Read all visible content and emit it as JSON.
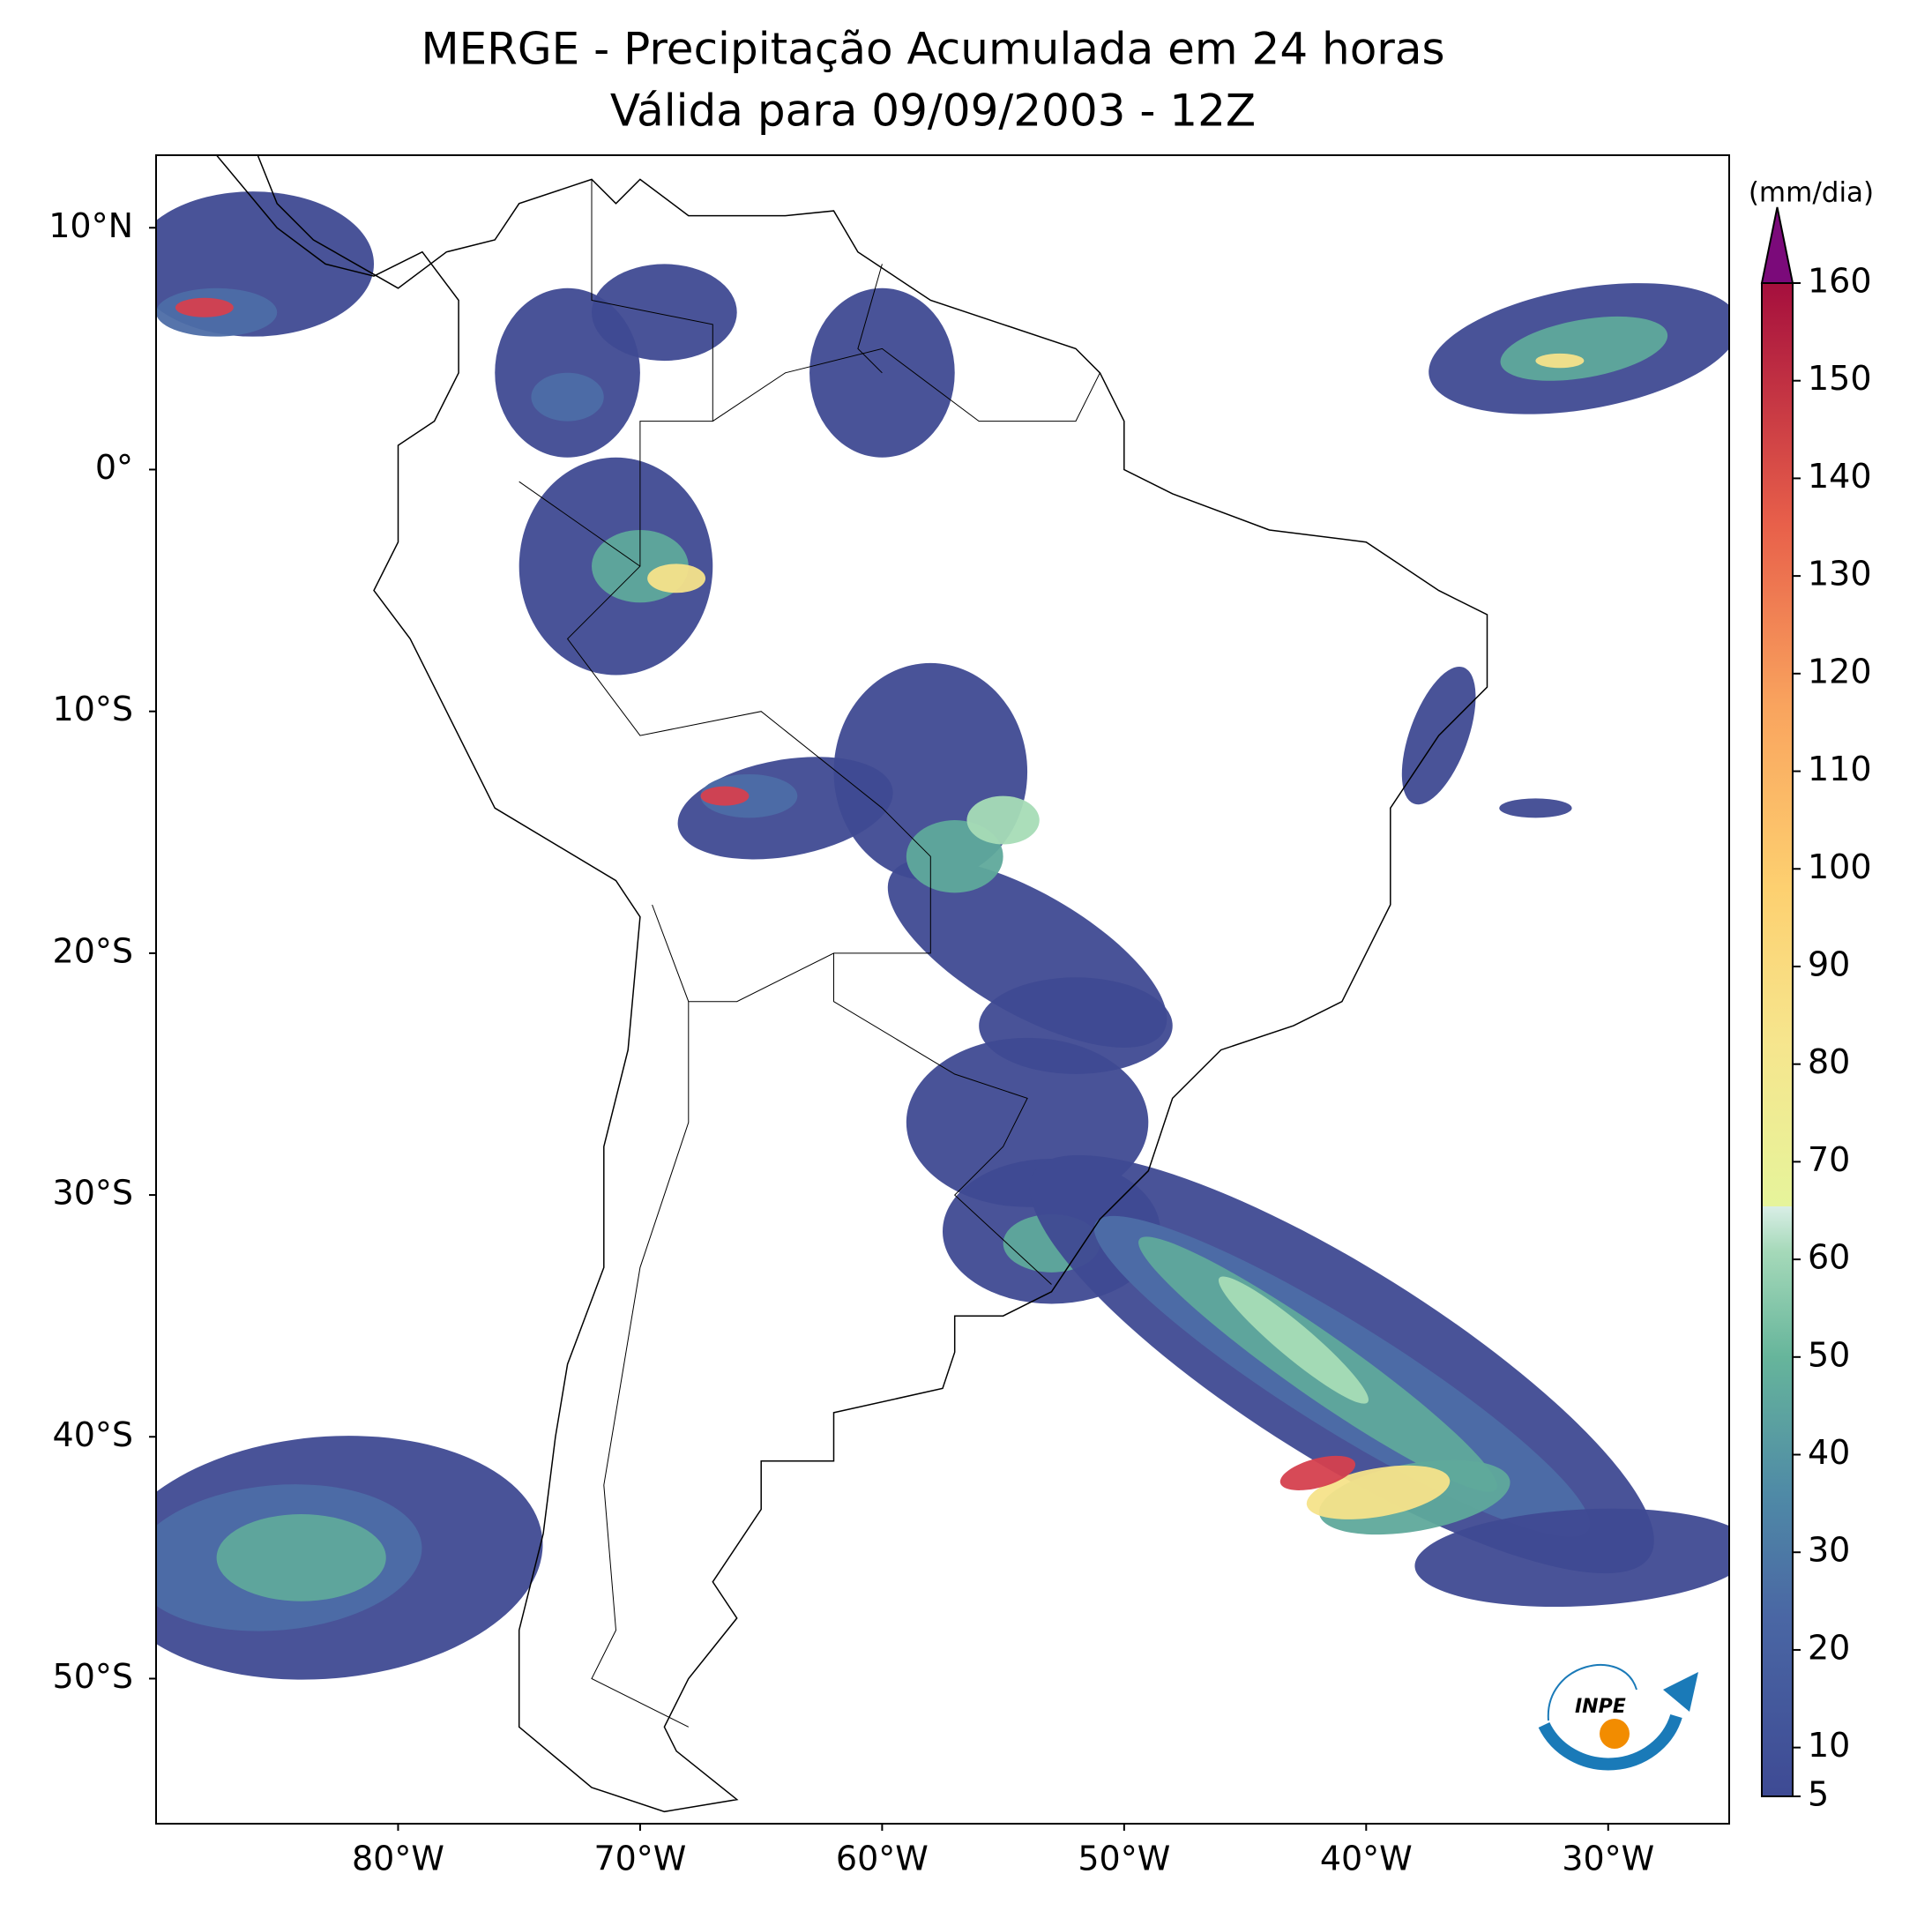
{
  "map": {
    "title": [
      "MERGE - Precipitação Acumulada em 24 horas",
      "Válida para 09/09/2003 - 12Z"
    ],
    "xlim": [
      -90,
      -25
    ],
    "ylim": [
      -56,
      13
    ],
    "xticks": [
      {
        "value": -80,
        "label": "80°W"
      },
      {
        "value": -70,
        "label": "70°W"
      },
      {
        "value": -60,
        "label": "60°W"
      },
      {
        "value": -50,
        "label": "50°W"
      },
      {
        "value": -40,
        "label": "40°W"
      },
      {
        "value": -30,
        "label": "30°W"
      }
    ],
    "yticks": [
      {
        "value": 10,
        "label": "10°N"
      },
      {
        "value": 0,
        "label": "0°"
      },
      {
        "value": -10,
        "label": "10°S"
      },
      {
        "value": -20,
        "label": "20°S"
      },
      {
        "value": -30,
        "label": "30°S"
      },
      {
        "value": -40,
        "label": "40°S"
      },
      {
        "value": -50,
        "label": "50°S"
      }
    ]
  },
  "colorbar": {
    "label": "(mm/dia)",
    "lim": [
      5,
      160
    ],
    "ticks": [
      5,
      10,
      20,
      30,
      40,
      50,
      60,
      70,
      80,
      90,
      100,
      110,
      120,
      130,
      140,
      150,
      160
    ]
  },
  "logo": "INPE"
}
